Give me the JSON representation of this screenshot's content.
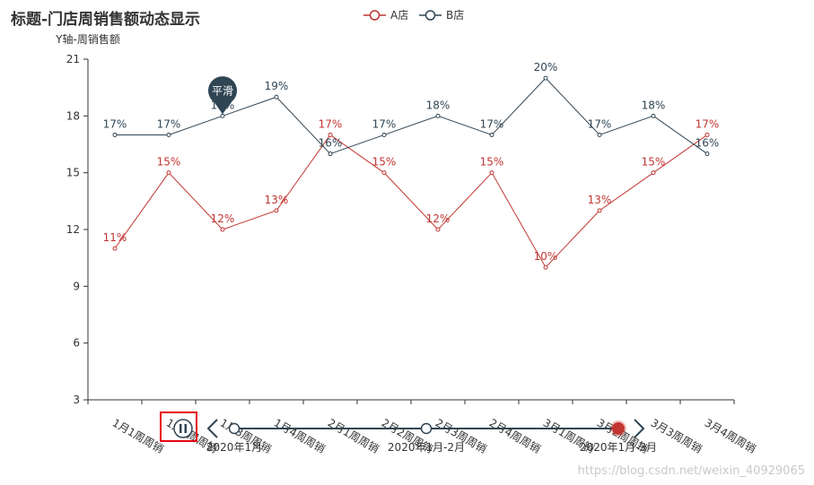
{
  "title": "标题-门店周销售额动态显示",
  "watermark": "https://blog.csdn.net/weixin_40929065",
  "tooltip_label": "平滑",
  "timeline": {
    "labels": [
      "2020年1月",
      "2020年1月-2月",
      "2020年1月-3月"
    ],
    "active_index": 2,
    "play_state": "playing",
    "line_color": "#2f4554",
    "active_color": "#c23531"
  },
  "chart_data": {
    "type": "line",
    "ylabel": "Y轴-周销售额",
    "ylim": [
      3,
      21
    ],
    "yticks": [
      3,
      6,
      9,
      12,
      15,
      18,
      21
    ],
    "legend_position": "top-center",
    "categories": [
      "1月1周周销",
      "1月2周周销",
      "1月3周周销",
      "1月4周周销",
      "2月1周周销",
      "2月2周周销",
      "2月3周周销",
      "2月4周周销",
      "3月1周周销",
      "3月2周周销",
      "3月3周周销",
      "3月4周周销"
    ],
    "series": [
      {
        "name": "A店",
        "color": "#c23531",
        "values": [
          11,
          15,
          12,
          13,
          17,
          15,
          12,
          15,
          10,
          13,
          15,
          17
        ],
        "labels": [
          "11%",
          "15%",
          "12%",
          "13%",
          "17%",
          "15%",
          "12%",
          "15%",
          "10%",
          "13%",
          "15%",
          "17%"
        ]
      },
      {
        "name": "B店",
        "color": "#2f4554",
        "values": [
          17,
          17,
          18,
          19,
          16,
          17,
          18,
          17,
          20,
          17,
          18,
          16
        ],
        "labels": [
          "17%",
          "17%",
          "18%",
          "19%",
          "16%",
          "17%",
          "18%",
          "17%",
          "20%",
          "17%",
          "18%",
          "16%"
        ]
      }
    ]
  }
}
